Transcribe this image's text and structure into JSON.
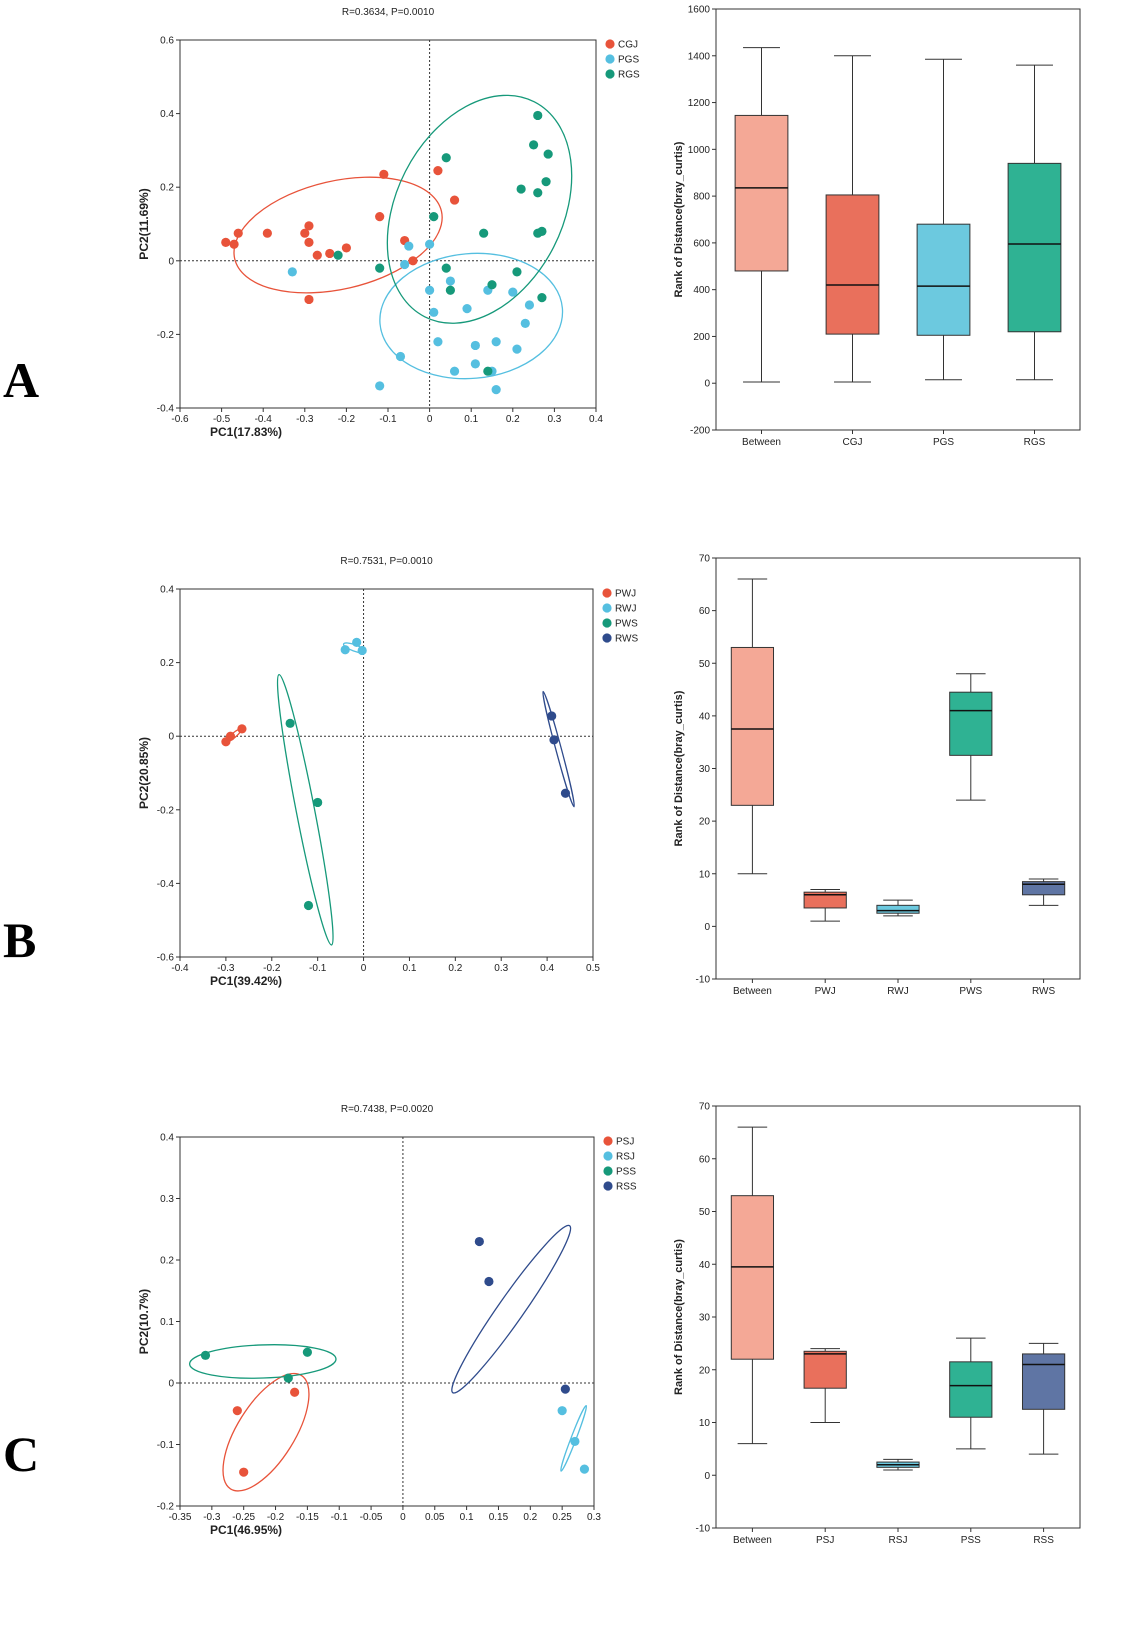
{
  "figure": {
    "panel_letters": [
      "A",
      "B",
      "C"
    ]
  },
  "colors": {
    "red": "#e8533a",
    "cyan": "#55bfe0",
    "green": "#16997a",
    "navy": "#2f4b8c",
    "box_between": "#f4a896",
    "box_red": "#e9705c",
    "box_cyan": "#6cc9df",
    "box_green": "#2fb293",
    "box_navy": "#5f75a4"
  },
  "chart_data": [
    {
      "type": "scatter",
      "panel": "A",
      "title": "R=0.3634, P=0.0010",
      "xlabel": "PC1(17.83%)",
      "ylabel": "PC2(11.69%)",
      "xlim": [
        -0.6,
        0.4
      ],
      "ylim": [
        -0.4,
        0.6
      ],
      "xticks": [
        -0.6,
        -0.5,
        -0.4,
        -0.3,
        -0.2,
        -0.1,
        0,
        0.1,
        0.2,
        0.3,
        0.4
      ],
      "yticks": [
        -0.4,
        -0.2,
        0,
        0.2,
        0.4,
        0.6
      ],
      "xtick_labels": [
        "-0.6",
        "-0.5",
        "-0.4",
        "-0.3",
        "-0.2",
        "-0.1",
        "0",
        "0.1",
        "0.2",
        "0.3",
        "0.4"
      ],
      "ytick_labels": [
        "-0.4",
        "-0.2",
        "0",
        "0.2",
        "0.4",
        "0.6"
      ],
      "legend_position": "top-right",
      "series": [
        {
          "name": "CGJ",
          "color": "red",
          "points": [
            [
              -0.49,
              0.05
            ],
            [
              -0.47,
              0.045
            ],
            [
              -0.46,
              0.075
            ],
            [
              -0.39,
              0.075
            ],
            [
              -0.3,
              0.075
            ],
            [
              -0.29,
              0.095
            ],
            [
              -0.29,
              0.05
            ],
            [
              -0.27,
              0.015
            ],
            [
              -0.29,
              -0.105
            ],
            [
              -0.24,
              0.02
            ],
            [
              -0.2,
              0.035
            ],
            [
              -0.12,
              0.12
            ],
            [
              -0.11,
              0.235
            ],
            [
              -0.06,
              0.055
            ],
            [
              -0.04,
              0.0
            ],
            [
              0.02,
              0.245
            ],
            [
              0.06,
              0.165
            ]
          ],
          "ellipse": {
            "cx": -0.22,
            "cy": 0.07,
            "rx": 0.255,
            "ry": 0.13,
            "rot": -13
          }
        },
        {
          "name": "PGS",
          "color": "cyan",
          "points": [
            [
              -0.33,
              -0.03
            ],
            [
              0.0,
              0.045
            ],
            [
              -0.06,
              -0.01
            ],
            [
              -0.05,
              0.04
            ],
            [
              0.0,
              -0.08
            ],
            [
              0.01,
              -0.14
            ],
            [
              0.05,
              -0.055
            ],
            [
              0.09,
              -0.13
            ],
            [
              0.14,
              -0.08
            ],
            [
              0.2,
              -0.085
            ],
            [
              0.23,
              -0.17
            ],
            [
              0.21,
              -0.24
            ],
            [
              0.16,
              -0.22
            ],
            [
              0.11,
              -0.23
            ],
            [
              0.11,
              -0.28
            ],
            [
              0.06,
              -0.3
            ],
            [
              0.16,
              -0.35
            ],
            [
              0.15,
              -0.3
            ],
            [
              0.24,
              -0.12
            ],
            [
              0.02,
              -0.22
            ],
            [
              -0.07,
              -0.26
            ],
            [
              -0.12,
              -0.34
            ]
          ],
          "ellipse": {
            "cx": 0.1,
            "cy": -0.15,
            "rx": 0.22,
            "ry": 0.15,
            "rot": -5
          }
        },
        {
          "name": "RGS",
          "color": "green",
          "points": [
            [
              -0.22,
              0.015
            ],
            [
              -0.12,
              -0.02
            ],
            [
              0.04,
              0.28
            ],
            [
              0.01,
              0.12
            ],
            [
              0.04,
              -0.02
            ],
            [
              0.05,
              -0.08
            ],
            [
              0.13,
              0.075
            ],
            [
              0.15,
              -0.065
            ],
            [
              0.21,
              -0.03
            ],
            [
              0.14,
              -0.3
            ],
            [
              0.22,
              0.195
            ],
            [
              0.25,
              0.315
            ],
            [
              0.26,
              0.395
            ],
            [
              0.26,
              0.185
            ],
            [
              0.26,
              0.075
            ],
            [
              0.27,
              0.08
            ],
            [
              0.28,
              0.215
            ],
            [
              0.285,
              0.29
            ],
            [
              0.27,
              -0.1
            ]
          ],
          "ellipse": {
            "cx": 0.12,
            "cy": 0.14,
            "rx": 0.2,
            "ry": 0.29,
            "rot": 27
          }
        }
      ]
    },
    {
      "type": "box",
      "panel": "A",
      "ylabel": "Rank of Distance(bray_curtis)",
      "ylim": [
        -200,
        1600
      ],
      "yticks": [
        -200,
        0,
        200,
        400,
        600,
        800,
        1000,
        1200,
        1400,
        1600
      ],
      "ytick_labels": [
        "-200",
        "0",
        "200",
        "400",
        "600",
        "800",
        "1000",
        "1200",
        "1400",
        "1600"
      ],
      "categories": [
        "Between",
        "CGJ",
        "PGS",
        "RGS"
      ],
      "colors": [
        "box_between",
        "box_red",
        "box_cyan",
        "box_green"
      ],
      "boxes": [
        {
          "min": 5,
          "q1": 480,
          "median": 835,
          "q3": 1145,
          "max": 1435
        },
        {
          "min": 5,
          "q1": 210,
          "median": 420,
          "q3": 805,
          "max": 1400
        },
        {
          "min": 15,
          "q1": 205,
          "median": 415,
          "q3": 680,
          "max": 1385
        },
        {
          "min": 15,
          "q1": 220,
          "median": 595,
          "q3": 940,
          "max": 1360
        }
      ]
    },
    {
      "type": "scatter",
      "panel": "B",
      "title": "R=0.7531, P=0.0010",
      "xlabel": "PC1(39.42%)",
      "ylabel": "PC2(20.85%)",
      "xlim": [
        -0.4,
        0.5
      ],
      "ylim": [
        -0.6,
        0.4
      ],
      "xticks": [
        -0.4,
        -0.3,
        -0.2,
        -0.1,
        0,
        0.1,
        0.2,
        0.3,
        0.4,
        0.5
      ],
      "yticks": [
        -0.6,
        -0.4,
        -0.2,
        0,
        0.2,
        0.4
      ],
      "xtick_labels": [
        "-0.4",
        "-0.3",
        "-0.2",
        "-0.1",
        "0",
        "0.1",
        "0.2",
        "0.3",
        "0.4",
        "0.5"
      ],
      "ytick_labels": [
        "-0.6",
        "-0.4",
        "-0.2",
        "0",
        "0.2",
        "0.4"
      ],
      "legend_position": "top-right",
      "series": [
        {
          "name": "PWJ",
          "color": "red",
          "points": [
            [
              -0.3,
              -0.015
            ],
            [
              -0.29,
              0.0
            ],
            [
              -0.265,
              0.02
            ]
          ],
          "ellipse": {
            "cx": -0.283,
            "cy": 0.002,
            "rx": 0.023,
            "ry": 0.005,
            "rot": -40
          }
        },
        {
          "name": "RWJ",
          "color": "cyan",
          "points": [
            [
              -0.04,
              0.235
            ],
            [
              -0.015,
              0.255
            ],
            [
              -0.003,
              0.233
            ]
          ],
          "ellipse": {
            "cx": -0.02,
            "cy": 0.24,
            "rx": 0.025,
            "ry": 0.007,
            "rot": 20
          }
        },
        {
          "name": "PWS",
          "color": "green",
          "points": [
            [
              -0.16,
              0.035
            ],
            [
              -0.1,
              -0.18
            ],
            [
              -0.12,
              -0.46
            ]
          ],
          "ellipse": {
            "cx": -0.127,
            "cy": -0.2,
            "rx": 0.3,
            "ry": 0.02,
            "rot": 79
          }
        },
        {
          "name": "RWS",
          "color": "navy",
          "points": [
            [
              0.41,
              0.055
            ],
            [
              0.415,
              -0.01
            ],
            [
              0.44,
              -0.155
            ]
          ],
          "ellipse": {
            "cx": 0.425,
            "cy": -0.035,
            "rx": 0.13,
            "ry": 0.006,
            "rot": 75
          }
        }
      ]
    },
    {
      "type": "box",
      "panel": "B",
      "ylabel": "Rank of Distance(bray_curtis)",
      "ylim": [
        -10,
        70
      ],
      "yticks": [
        -10,
        0,
        10,
        20,
        30,
        40,
        50,
        60,
        70
      ],
      "ytick_labels": [
        "-10",
        "0",
        "10",
        "20",
        "30",
        "40",
        "50",
        "60",
        "70"
      ],
      "categories": [
        "Between",
        "PWJ",
        "RWJ",
        "PWS",
        "RWS"
      ],
      "colors": [
        "box_between",
        "box_red",
        "box_cyan",
        "box_green",
        "box_navy"
      ],
      "boxes": [
        {
          "min": 10,
          "q1": 23,
          "median": 37.5,
          "q3": 53,
          "max": 66
        },
        {
          "min": 1,
          "q1": 3.5,
          "median": 6,
          "q3": 6.5,
          "max": 7
        },
        {
          "min": 2,
          "q1": 2.5,
          "median": 3,
          "q3": 4,
          "max": 5
        },
        {
          "min": 24,
          "q1": 32.5,
          "median": 41,
          "q3": 44.5,
          "max": 48
        },
        {
          "min": 4,
          "q1": 6,
          "median": 8,
          "q3": 8.5,
          "max": 9
        }
      ]
    },
    {
      "type": "scatter",
      "panel": "C",
      "title": "R=0.7438, P=0.0020",
      "xlabel": "PC1(46.95%)",
      "ylabel": "PC2(10.7%)",
      "xlim": [
        -0.35,
        0.3
      ],
      "ylim": [
        -0.2,
        0.4
      ],
      "xticks": [
        -0.35,
        -0.3,
        -0.25,
        -0.2,
        -0.15,
        -0.1,
        -0.05,
        0,
        0.05,
        0.1,
        0.15,
        0.2,
        0.25,
        0.3
      ],
      "yticks": [
        -0.2,
        -0.1,
        0,
        0.1,
        0.2,
        0.3,
        0.4
      ],
      "xtick_labels": [
        "-0.35",
        "-0.3",
        "-0.25",
        "-0.2",
        "-0.15",
        "-0.1",
        "-0.05",
        "0",
        "0.05",
        "0.1",
        "0.15",
        "0.2",
        "0.25",
        "0.3"
      ],
      "ytick_labels": [
        "-0.2",
        "-0.1",
        "0",
        "0.1",
        "0.2",
        "0.3",
        "0.4"
      ],
      "legend_position": "top-right",
      "series": [
        {
          "name": "PSJ",
          "color": "red",
          "points": [
            [
              -0.26,
              -0.045
            ],
            [
              -0.25,
              -0.145
            ],
            [
              -0.17,
              -0.015
            ]
          ],
          "ellipse": {
            "cx": -0.215,
            "cy": -0.08,
            "rx": 0.105,
            "ry": 0.045,
            "rot": -58
          }
        },
        {
          "name": "RSJ",
          "color": "cyan",
          "points": [
            [
              0.25,
              -0.045
            ],
            [
              0.27,
              -0.095
            ],
            [
              0.285,
              -0.14
            ]
          ],
          "ellipse": {
            "cx": 0.268,
            "cy": -0.09,
            "rx": 0.055,
            "ry": 0.004,
            "rot": -69
          }
        },
        {
          "name": "PSS",
          "color": "green",
          "points": [
            [
              -0.31,
              0.045
            ],
            [
              -0.15,
              0.05
            ],
            [
              -0.18,
              0.008
            ]
          ],
          "ellipse": {
            "cx": -0.22,
            "cy": 0.035,
            "rx": 0.115,
            "ry": 0.026,
            "rot": -2
          }
        },
        {
          "name": "RSS",
          "color": "navy",
          "points": [
            [
              0.12,
              0.23
            ],
            [
              0.135,
              0.165
            ],
            [
              0.255,
              -0.01
            ]
          ],
          "ellipse": {
            "cx": 0.17,
            "cy": 0.12,
            "rx": 0.16,
            "ry": 0.02,
            "rot": -55
          }
        }
      ]
    },
    {
      "type": "box",
      "panel": "C",
      "ylabel": "Rank of Distance(bray_curtis)",
      "ylim": [
        -10,
        70
      ],
      "yticks": [
        -10,
        0,
        10,
        20,
        30,
        40,
        50,
        60,
        70
      ],
      "ytick_labels": [
        "-10",
        "0",
        "10",
        "20",
        "30",
        "40",
        "50",
        "60",
        "70"
      ],
      "categories": [
        "Between",
        "PSJ",
        "RSJ",
        "PSS",
        "RSS"
      ],
      "colors": [
        "box_between",
        "box_red",
        "box_cyan",
        "box_green",
        "box_navy"
      ],
      "boxes": [
        {
          "min": 6,
          "q1": 22,
          "median": 39.5,
          "q3": 53,
          "max": 66
        },
        {
          "min": 10,
          "q1": 16.5,
          "median": 23,
          "q3": 23.5,
          "max": 24
        },
        {
          "min": 1,
          "q1": 1.5,
          "median": 2,
          "q3": 2.5,
          "max": 3
        },
        {
          "min": 5,
          "q1": 11,
          "median": 17,
          "q3": 21.5,
          "max": 26
        },
        {
          "min": 4,
          "q1": 12.5,
          "median": 21,
          "q3": 23,
          "max": 25
        }
      ]
    }
  ]
}
